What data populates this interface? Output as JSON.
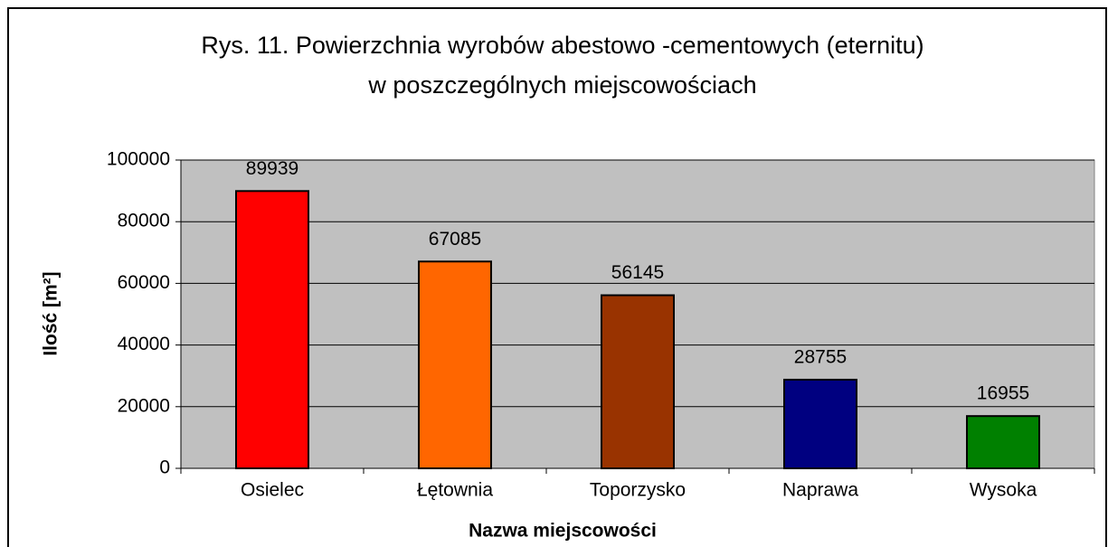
{
  "chart_data": {
    "type": "bar",
    "title": [
      "Rys. 11. Powierzchnia wyrobów abestowo -cementowych (eternitu)",
      "w poszczególnych miejscowościach"
    ],
    "x_label": "Nazwa miejscowości",
    "y_label": "Ilość [m²]",
    "categories": [
      "Osielec",
      "Łętownia",
      "Toporzysko",
      "Naprawa",
      "Wysoka"
    ],
    "values": [
      89939,
      67085,
      56145,
      28755,
      16955
    ],
    "colors": [
      "#ff0000",
      "#ff6600",
      "#993300",
      "#000080",
      "#008000"
    ],
    "ylim": [
      0,
      100000
    ],
    "yticks": [
      0,
      20000,
      40000,
      60000,
      80000,
      100000
    ],
    "grid": true,
    "plot_background": "#c0c0c0"
  }
}
